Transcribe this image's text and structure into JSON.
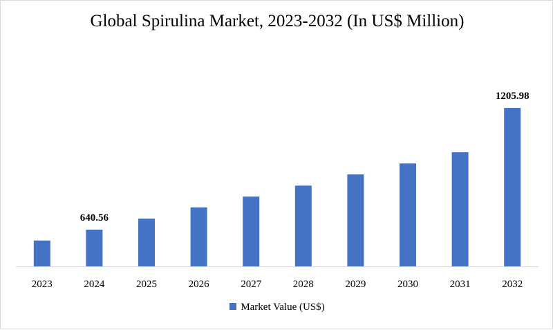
{
  "chart_data": {
    "type": "bar",
    "title": "Global Spirulina Market, 2023-2032 (In US$ Million)",
    "categories": [
      "2023",
      "2024",
      "2025",
      "2026",
      "2027",
      "2028",
      "2029",
      "2030",
      "2031",
      "2032"
    ],
    "series": [
      {
        "name": "Market Value (US$)",
        "color": "#4472c4",
        "values": [
          590,
          640.56,
          692,
          744,
          794,
          845,
          897,
          948,
          1000,
          1205.98
        ]
      }
    ],
    "data_labels": [
      {
        "category": "2024",
        "text": "640.56"
      },
      {
        "category": "2032",
        "text": "1205.98"
      }
    ],
    "ylim": [
      470,
      1205.98
    ],
    "grid": false,
    "legend": "bottom"
  }
}
